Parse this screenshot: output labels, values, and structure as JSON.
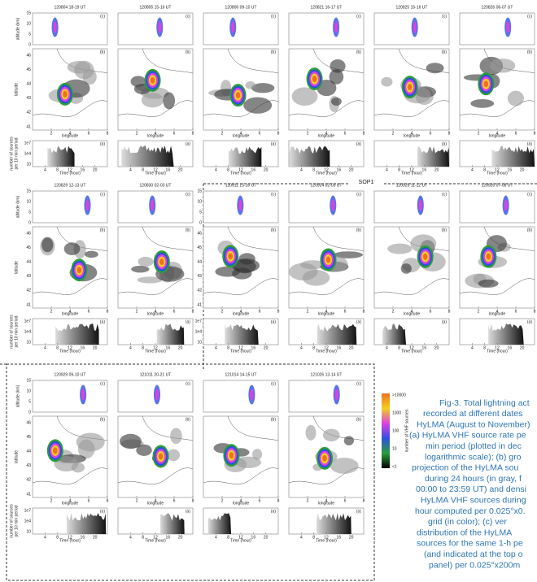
{
  "rows": [
    {
      "panels": [
        {
          "title": "120804 18-19 UT"
        },
        {
          "title": "120805 15-16 UT"
        },
        {
          "title": "120806 09-10 UT"
        },
        {
          "title": "120821 16-17 UT"
        },
        {
          "title": "120825 15-16 UT"
        },
        {
          "title": "120826 06-07 UT"
        }
      ]
    },
    {
      "panels": [
        {
          "title": "120829 12-13 UT"
        },
        {
          "title": "120830 02-03 UT"
        },
        {
          "title": "120911 15-16 UT"
        },
        {
          "title": "120924 02-03 UT"
        },
        {
          "title": "120925 11-12 UT"
        },
        {
          "title": "120926 07-08 UT"
        }
      ]
    },
    {
      "panels": [
        {
          "title": "120929 09-10 UT"
        },
        {
          "title": "121011 20-21 UT"
        },
        {
          "title": "121014 14-15 UT"
        },
        {
          "title": "121026 13-14 UT"
        }
      ]
    }
  ],
  "sop_label": "SOP1",
  "panel_letters": {
    "c": "(c)",
    "b": "(b)",
    "a": "(a)"
  },
  "axes": {
    "altitude_label": "altitude (km)",
    "altitude_ticks": [
      0,
      5,
      10,
      15
    ],
    "latitude_label": "latitude",
    "latitude_ticks": [
      41,
      42,
      43,
      44,
      45,
      46
    ],
    "longitude_label": "longitude",
    "longitude_ticks": [
      2,
      4,
      6,
      8
    ],
    "rate_label": [
      "number of sources",
      "per 10 min period"
    ],
    "rate_ticks": [
      "1e7",
      "1e4",
      "10"
    ],
    "time_label": "Time (hour)",
    "time_ticks": [
      4,
      8,
      12,
      16,
      20
    ]
  },
  "colorbar": {
    "label": "number of VHF sources",
    "ticks": [
      ">10000",
      "1000",
      "100",
      "10",
      "<1"
    ]
  },
  "caption": [
    "Fig-3. Total lightning act",
    "recorded at different dates",
    "HyLMA (August to November)",
    "(a) HyLMA VHF source rate pe",
    "min period (plotted in dec",
    "logarithmic scale); (b) gro",
    "projection of the HyLMA sou",
    "during 24 hours (in gray, f",
    "00:00 to 23:59 UT) and densi",
    "HyLMA VHF sources during",
    "hour computed per 0.025°x0.",
    "grid (in color); (c) ver",
    "distribution of the HyLMA",
    "sources for the same 1-h pe",
    "(and indicated at the top o",
    "panel) per 0.025°x200m"
  ]
}
